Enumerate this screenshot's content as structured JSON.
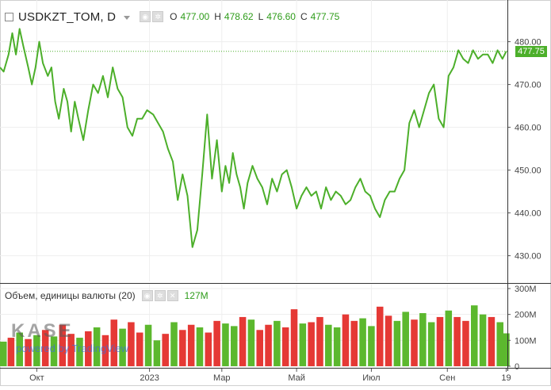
{
  "header": {
    "symbol": "USDKZT_TOM, D",
    "open_label": "O",
    "open_value": "477.00",
    "high_label": "H",
    "high_value": "478.62",
    "low_label": "L",
    "low_value": "476.60",
    "close_label": "C",
    "close_value": "477.75"
  },
  "volume_header": {
    "title": "Объем, единицы валюты (20)",
    "value": "127M"
  },
  "last_price_label": "477.75",
  "watermark": {
    "logo": "KASE",
    "subtitle": "powered by TradingView"
  },
  "colors": {
    "line": "#4caf2a",
    "volume_up": "#5cb82e",
    "volume_down": "#e53935",
    "last_price": "#4caf2a"
  },
  "chart_data": [
    {
      "type": "line",
      "title": "USDKZT_TOM, D",
      "ylim": [
        424,
        489
      ],
      "yticks": [
        "480.00",
        "470.00",
        "460.00",
        "450.00",
        "440.00",
        "430.00"
      ],
      "ytick_values": [
        480,
        470,
        460,
        450,
        440,
        430
      ],
      "xticks": [
        "Окт",
        "2023",
        "Мар",
        "Май",
        "Июл",
        "Сен",
        "19"
      ],
      "xtick_dates": [
        "2022-10-01",
        "2023-01-01",
        "2023-03-01",
        "2023-05-01",
        "2023-07-01",
        "2023-09-01",
        "2023-10-19"
      ],
      "date_range": [
        "2022-09-01",
        "2023-10-20"
      ],
      "grid": true,
      "last_value": 477.75,
      "series": [
        {
          "x": [
            "2022-09-01",
            "2022-09-04",
            "2022-09-08",
            "2022-09-11",
            "2022-09-14",
            "2022-09-17",
            "2022-09-20",
            "2022-09-24",
            "2022-09-27",
            "2022-09-30",
            "2022-10-03",
            "2022-10-06",
            "2022-10-10",
            "2022-10-13",
            "2022-10-16",
            "2022-10-19",
            "2022-10-23",
            "2022-10-26",
            "2022-10-29",
            "2022-11-01",
            "2022-11-04",
            "2022-11-08",
            "2022-11-12",
            "2022-11-16",
            "2022-11-20",
            "2022-11-24",
            "2022-11-28",
            "2022-12-02",
            "2022-12-06",
            "2022-12-10",
            "2022-12-14",
            "2022-12-18",
            "2022-12-22",
            "2022-12-26",
            "2022-12-30",
            "2023-01-04",
            "2023-01-08",
            "2023-01-12",
            "2023-01-16",
            "2023-01-20",
            "2023-01-24",
            "2023-01-28",
            "2023-02-01",
            "2023-02-05",
            "2023-02-09",
            "2023-02-13",
            "2023-02-17",
            "2023-02-21",
            "2023-02-25",
            "2023-03-01",
            "2023-03-04",
            "2023-03-07",
            "2023-03-10",
            "2023-03-13",
            "2023-03-16",
            "2023-03-19",
            "2023-03-22",
            "2023-03-26",
            "2023-03-30",
            "2023-04-03",
            "2023-04-07",
            "2023-04-11",
            "2023-04-15",
            "2023-04-19",
            "2023-04-23",
            "2023-04-27",
            "2023-05-01",
            "2023-05-05",
            "2023-05-09",
            "2023-05-13",
            "2023-05-17",
            "2023-05-21",
            "2023-05-25",
            "2023-05-29",
            "2023-06-02",
            "2023-06-06",
            "2023-06-10",
            "2023-06-14",
            "2023-06-18",
            "2023-06-22",
            "2023-06-26",
            "2023-06-30",
            "2023-07-04",
            "2023-07-08",
            "2023-07-12",
            "2023-07-16",
            "2023-07-20",
            "2023-07-24",
            "2023-07-28",
            "2023-08-01",
            "2023-08-05",
            "2023-08-09",
            "2023-08-13",
            "2023-08-17",
            "2023-08-21",
            "2023-08-25",
            "2023-08-29",
            "2023-09-02",
            "2023-09-06",
            "2023-09-10",
            "2023-09-14",
            "2023-09-18",
            "2023-09-22",
            "2023-09-26",
            "2023-09-30",
            "2023-10-04",
            "2023-10-08",
            "2023-10-12",
            "2023-10-16",
            "2023-10-19"
          ],
          "values": [
            474,
            473,
            477,
            482,
            477,
            483,
            479,
            474,
            470,
            474,
            480,
            475,
            472,
            474,
            466,
            462,
            469,
            466,
            459,
            466,
            462,
            457,
            464,
            470,
            468,
            472,
            467,
            474,
            469,
            467,
            460,
            458,
            462,
            462,
            464,
            463,
            461,
            459,
            455,
            452,
            443,
            449,
            444,
            432,
            436,
            449,
            463,
            448,
            457,
            445,
            451,
            447,
            454,
            449,
            446,
            441,
            447,
            451,
            448,
            446,
            442,
            448,
            445,
            449,
            450,
            446,
            441,
            444,
            446,
            444,
            445,
            441,
            446,
            443,
            445,
            444,
            442,
            443,
            446,
            448,
            445,
            444,
            441,
            439,
            443,
            445,
            445,
            448,
            450,
            461,
            464,
            460,
            464,
            468,
            470,
            462,
            460,
            472,
            474,
            478,
            476,
            475,
            478,
            476,
            477,
            477,
            475,
            478,
            476,
            477.75
          ]
        }
      ]
    },
    {
      "type": "bar",
      "title": "Объем, единицы валюты (20)",
      "ylim": [
        0,
        300
      ],
      "yticks": [
        "300M",
        "200M",
        "100M",
        "0"
      ],
      "ytick_values": [
        300,
        200,
        100,
        0
      ],
      "unit": "M",
      "date_range": [
        "2022-09-01",
        "2023-10-20"
      ],
      "last_value": 127,
      "series": [
        {
          "x": [
            "2022-09-03",
            "2022-09-10",
            "2022-09-17",
            "2022-09-24",
            "2022-10-01",
            "2022-10-08",
            "2022-10-15",
            "2022-10-22",
            "2022-10-29",
            "2022-11-05",
            "2022-11-12",
            "2022-11-19",
            "2022-11-26",
            "2022-12-03",
            "2022-12-10",
            "2022-12-17",
            "2022-12-24",
            "2022-12-31",
            "2023-01-07",
            "2023-01-14",
            "2023-01-21",
            "2023-01-28",
            "2023-02-04",
            "2023-02-11",
            "2023-02-18",
            "2023-02-25",
            "2023-03-04",
            "2023-03-11",
            "2023-03-18",
            "2023-03-25",
            "2023-04-01",
            "2023-04-08",
            "2023-04-15",
            "2023-04-22",
            "2023-04-29",
            "2023-05-06",
            "2023-05-13",
            "2023-05-20",
            "2023-05-27",
            "2023-06-03",
            "2023-06-10",
            "2023-06-17",
            "2023-06-24",
            "2023-07-01",
            "2023-07-08",
            "2023-07-15",
            "2023-07-22",
            "2023-07-29",
            "2023-08-05",
            "2023-08-12",
            "2023-08-19",
            "2023-08-26",
            "2023-09-02",
            "2023-09-09",
            "2023-09-16",
            "2023-09-23",
            "2023-09-30",
            "2023-10-07",
            "2023-10-14",
            "2023-10-19"
          ],
          "values": [
            95,
            110,
            130,
            105,
            120,
            140,
            115,
            160,
            125,
            110,
            135,
            150,
            120,
            180,
            145,
            170,
            130,
            160,
            100,
            125,
            170,
            140,
            160,
            150,
            130,
            175,
            165,
            155,
            190,
            180,
            140,
            160,
            175,
            150,
            220,
            165,
            170,
            190,
            160,
            150,
            200,
            175,
            185,
            155,
            230,
            195,
            175,
            210,
            180,
            205,
            170,
            190,
            215,
            190,
            175,
            235,
            200,
            190,
            170,
            127
          ],
          "directions": [
            "up",
            "down",
            "up",
            "down",
            "up",
            "down",
            "up",
            "down",
            "down",
            "up",
            "down",
            "up",
            "down",
            "down",
            "up",
            "down",
            "down",
            "up",
            "up",
            "down",
            "up",
            "down",
            "down",
            "up",
            "down",
            "down",
            "up",
            "up",
            "down",
            "up",
            "down",
            "down",
            "up",
            "down",
            "down",
            "up",
            "down",
            "down",
            "up",
            "up",
            "down",
            "down",
            "up",
            "up",
            "down",
            "down",
            "up",
            "up",
            "down",
            "up",
            "up",
            "down",
            "up",
            "down",
            "down",
            "up",
            "up",
            "down",
            "up",
            "up"
          ]
        }
      ]
    }
  ]
}
